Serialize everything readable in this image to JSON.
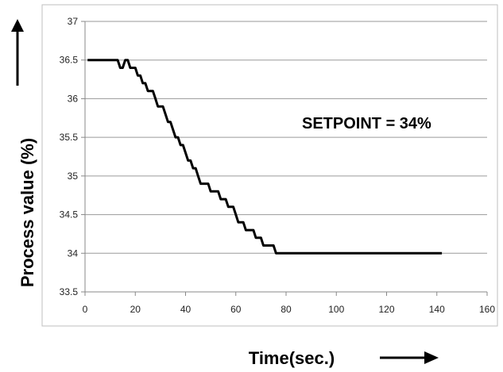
{
  "chart_data": {
    "type": "line",
    "title": "",
    "xlabel": "Time(sec.)",
    "ylabel": "Process value (%)",
    "annotation": "SETPOINT = 34%",
    "xlim": [
      0,
      160
    ],
    "ylim": [
      33.5,
      37
    ],
    "xticks": [
      0,
      20,
      40,
      60,
      80,
      100,
      120,
      140,
      160
    ],
    "yticks": [
      33.5,
      34,
      34.5,
      35,
      35.5,
      36,
      36.5,
      37
    ],
    "ytick_labels": [
      "33.5",
      "34",
      "34.5",
      "35",
      "35.5",
      "36",
      "36.5",
      "37"
    ],
    "grid": "horizontal",
    "line_color": "#000000",
    "series": [
      {
        "x": [
          1,
          13,
          14,
          15,
          16,
          17,
          18,
          19,
          20,
          21,
          22,
          23,
          24,
          25,
          26,
          27,
          28,
          29,
          30,
          31,
          32,
          33,
          34,
          35,
          36,
          37,
          38,
          39,
          40,
          41,
          42,
          43,
          44,
          45,
          46,
          47,
          48,
          49,
          50,
          51,
          52,
          53,
          54,
          55,
          56,
          57,
          58,
          59,
          60,
          61,
          62,
          63,
          64,
          65,
          66,
          67,
          68,
          69,
          70,
          71,
          72,
          73,
          74,
          75,
          76,
          77,
          78,
          79,
          80,
          81,
          82,
          83,
          84,
          85,
          86,
          87,
          88,
          89,
          90,
          91,
          92,
          93,
          94,
          100,
          110,
          120,
          130,
          142
        ],
        "values": [
          36.5,
          36.5,
          36.4,
          36.4,
          36.5,
          36.5,
          36.4,
          36.4,
          36.4,
          36.3,
          36.3,
          36.2,
          36.2,
          36.1,
          36.1,
          36.1,
          36.0,
          35.9,
          35.9,
          35.9,
          35.8,
          35.7,
          35.7,
          35.6,
          35.5,
          35.5,
          35.4,
          35.4,
          35.3,
          35.2,
          35.2,
          35.1,
          35.1,
          35.0,
          34.9,
          34.9,
          34.9,
          34.9,
          34.8,
          34.8,
          34.8,
          34.8,
          34.7,
          34.7,
          34.7,
          34.6,
          34.6,
          34.6,
          34.5,
          34.4,
          34.4,
          34.4,
          34.3,
          34.3,
          34.3,
          34.3,
          34.2,
          34.2,
          34.2,
          34.1,
          34.1,
          34.1,
          34.1,
          34.1,
          34.0,
          34.0,
          34.0,
          34.0,
          34.0,
          34.0,
          34.0,
          34.0,
          34.0,
          34.0,
          34.0,
          34.0,
          34.0,
          34.0,
          34.0,
          34.0,
          34.0,
          34.0,
          34.0,
          34.0,
          34.0,
          34.0,
          34.0,
          34.0
        ]
      }
    ]
  }
}
